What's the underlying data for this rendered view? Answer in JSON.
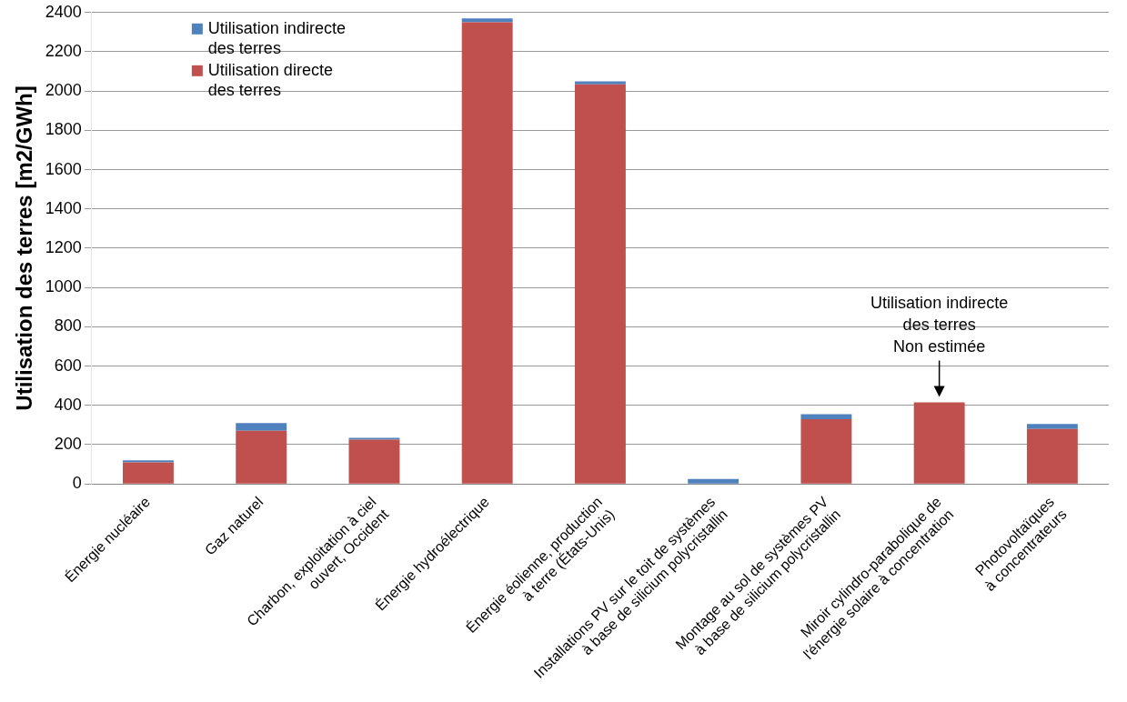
{
  "chart_data": {
    "type": "bar",
    "stacked": true,
    "ylabel": "Utilisation des terres [m2/GWh]",
    "categories": [
      "Énergie nucléaire",
      "Gaz naturel",
      "Charbon, exploitation à ciel\nouvert, Occident",
      "Énergie hydroélectrique",
      "Énergie éolienne, production\nà terre (États-Unis)",
      "Installations PV sur le toit de systèmes\nà base de silicium polycristallin",
      "Montage au sol de systèmes PV\nà base de silicium polycristallin",
      "Miroir cylindro-parabolique de\nl'énergie solaire à concentration",
      "Photovoltaïques\nà concentrateurs"
    ],
    "series": [
      {
        "name": "Utilisation directe\ndes terres",
        "color": "#c0504d",
        "values": [
          110,
          270,
          225,
          2350,
          2035,
          0,
          330,
          415,
          280
        ]
      },
      {
        "name": "Utilisation indirecte\ndes terres",
        "color": "#4f81bd",
        "values": [
          10,
          40,
          10,
          20,
          15,
          25,
          25,
          null,
          25
        ]
      }
    ],
    "ylim": [
      0,
      2400
    ],
    "yticks": [
      0,
      200,
      400,
      600,
      800,
      1000,
      1200,
      1400,
      1600,
      1800,
      2000,
      2200,
      2400
    ],
    "grid": "y",
    "legend": "top left",
    "annotations": [
      {
        "text": "Utilisation indirecte\ndes terres\nNon estimée",
        "x": "Miroir cylindro-parabolique de\nl'énergie solaire à concentration",
        "y": 415
      }
    ]
  }
}
